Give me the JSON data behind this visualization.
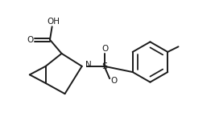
{
  "bg_color": "#ffffff",
  "line_color": "#1a1a1a",
  "line_width": 1.4,
  "font_size": 7.5,
  "figsize": [
    2.67,
    1.55
  ],
  "dpi": 100,
  "xlim": [
    0,
    10
  ],
  "ylim": [
    0,
    5.8
  ]
}
